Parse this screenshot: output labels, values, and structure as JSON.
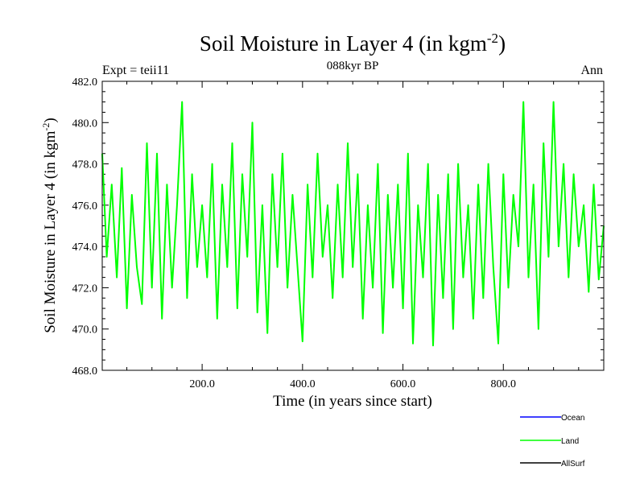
{
  "chart_data": {
    "type": "line",
    "title": "Soil Moisture in Layer 4 (in kgm",
    "title_sup": "-2",
    "title_end": ")",
    "subtitle": "088kyr BP",
    "left_label": "Expt = teii11",
    "right_label": "Ann",
    "xlabel": "Time (in years since start)",
    "ylabel": "Soil Moisture in Layer 4 (in kgm",
    "ylabel_sup": "-2",
    "ylabel_end": ")",
    "xlim": [
      1,
      1000
    ],
    "ylim": [
      468.0,
      482.0
    ],
    "x_ticks": [
      200,
      400,
      600,
      800
    ],
    "x_tick_labels": [
      "200.0",
      "400.0",
      "600.0",
      "800.0"
    ],
    "y_ticks": [
      468,
      470,
      472,
      474,
      476,
      478,
      480,
      482
    ],
    "y_tick_labels": [
      "468.0",
      "470.0",
      "472.0",
      "474.0",
      "476.0",
      "478.0",
      "480.0",
      "482.0"
    ],
    "grid": false,
    "legend": {
      "placement": "bottom-right",
      "entries": [
        {
          "name": "Ocean",
          "color": "#0000ff"
        },
        {
          "name": "Land",
          "color": "#00ff00"
        },
        {
          "name": "AllSurf",
          "color": "#000000"
        }
      ]
    },
    "series": [
      {
        "name": "Land",
        "color": "#00ff00",
        "x": [
          1,
          10,
          20,
          30,
          40,
          50,
          60,
          70,
          80,
          90,
          100,
          110,
          120,
          130,
          140,
          150,
          160,
          170,
          180,
          190,
          200,
          210,
          220,
          230,
          240,
          250,
          260,
          270,
          280,
          290,
          300,
          310,
          320,
          330,
          340,
          350,
          360,
          370,
          380,
          390,
          400,
          410,
          420,
          430,
          440,
          450,
          460,
          470,
          480,
          490,
          500,
          510,
          520,
          530,
          540,
          550,
          560,
          570,
          580,
          590,
          600,
          610,
          620,
          630,
          640,
          650,
          660,
          670,
          680,
          690,
          700,
          710,
          720,
          730,
          740,
          750,
          760,
          770,
          780,
          790,
          800,
          810,
          820,
          830,
          840,
          850,
          860,
          870,
          880,
          890,
          900,
          910,
          920,
          930,
          940,
          950,
          960,
          970,
          980,
          990,
          1000
        ],
        "values": [
          478.5,
          473.5,
          477.0,
          472.5,
          477.8,
          471.0,
          476.5,
          473.0,
          471.2,
          479.0,
          472.0,
          478.5,
          470.5,
          477.0,
          472.0,
          476.0,
          481.0,
          471.5,
          477.5,
          473.0,
          476.0,
          472.5,
          478.0,
          470.5,
          477.0,
          473.0,
          479.0,
          471.0,
          477.5,
          473.5,
          480.0,
          470.8,
          476.0,
          469.8,
          477.5,
          473.0,
          478.5,
          472.0,
          476.5,
          473.0,
          469.4,
          477.0,
          472.5,
          478.5,
          473.5,
          476.0,
          471.5,
          477.0,
          472.5,
          479.0,
          473.0,
          477.5,
          470.5,
          476.0,
          472.0,
          478.0,
          469.8,
          476.5,
          472.0,
          477.0,
          471.0,
          478.5,
          469.3,
          476.0,
          472.5,
          478.0,
          469.2,
          476.5,
          471.5,
          477.5,
          470.0,
          478.0,
          472.5,
          476.0,
          470.5,
          477.0,
          471.5,
          478.0,
          473.0,
          469.3,
          477.5,
          472.0,
          476.5,
          474.0,
          481.0,
          472.5,
          477.0,
          470.0,
          479.0,
          473.5,
          481.0,
          474.0,
          478.0,
          472.5,
          477.5,
          474.0,
          476.0,
          471.8,
          477.0,
          472.4,
          475.0
        ]
      }
    ]
  }
}
